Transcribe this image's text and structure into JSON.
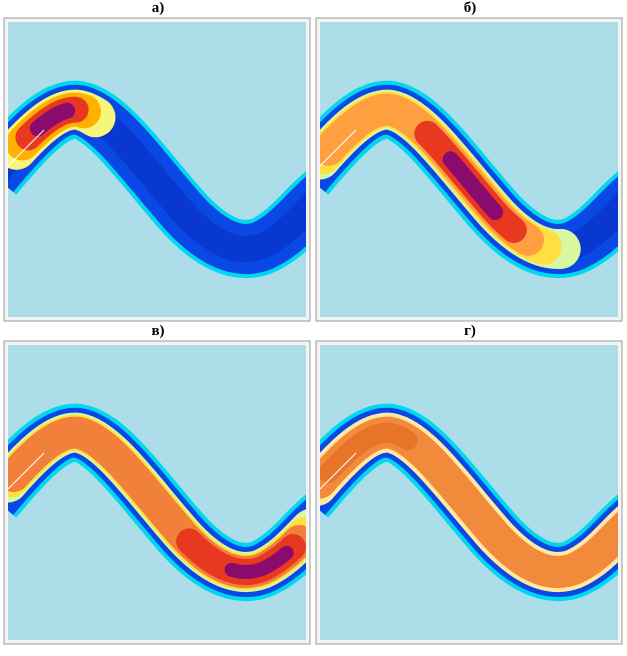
{
  "panels": [
    {
      "label": "а)"
    },
    {
      "label": "б)"
    },
    {
      "label": "в)"
    },
    {
      "label": "г)"
    }
  ]
}
